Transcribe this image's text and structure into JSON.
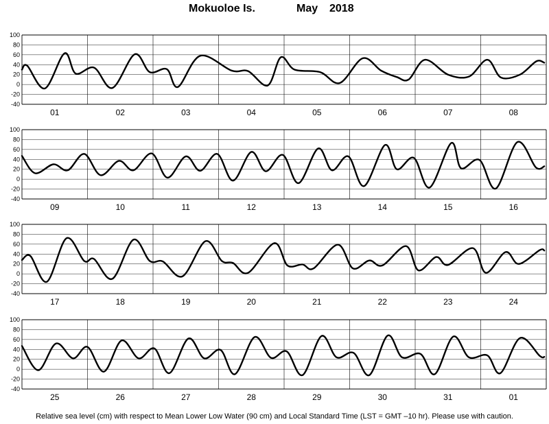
{
  "header": {
    "station": "Mokuoloe Is.",
    "month": "May",
    "year": "2018"
  },
  "footnote": "Relative sea level (cm) with respect to Mean Lower Low Water (90 cm) and Local Standard Time (LST = GMT –10 hr). Please use with caution.",
  "chart_data": {
    "type": "line",
    "title": "Mokuoloe Is.   May 2018",
    "ylabel": "",
    "xlabel": "",
    "units": "cm",
    "ylim": [
      -40,
      100
    ],
    "yticks": [
      -40,
      -20,
      0,
      20,
      40,
      60,
      80,
      100
    ],
    "grid": true,
    "line_color": "#000000",
    "panels": [
      {
        "days": [
          "01",
          "02",
          "03",
          "04",
          "05",
          "06",
          "07",
          "08"
        ],
        "series": [
          {
            "x_days": [
              0,
              0.08,
              0.35,
              0.65,
              0.82,
              1.1,
              1.38,
              1.72,
              1.95,
              2.21,
              2.38,
              2.72,
              3.2,
              3.45,
              3.75,
              3.95,
              4.16,
              4.55,
              4.85,
              5.2,
              5.48,
              5.72,
              5.9,
              6.15,
              6.5,
              6.82,
              7.1,
              7.31,
              7.6,
              7.85,
              7.97
            ],
            "y": [
              30,
              38,
              -8,
              63,
              22,
              34,
              -7,
              61,
              25,
              31,
              -5,
              58,
              28,
              27,
              -2,
              55,
              30,
              25,
              3,
              53,
              28,
              15,
              10,
              50,
              20,
              16,
              50,
              14,
              20,
              47,
              44
            ]
          }
        ]
      },
      {
        "days": [
          "09",
          "10",
          "11",
          "12",
          "13",
          "14",
          "15",
          "16"
        ],
        "series": [
          {
            "x_days": [
              0,
              0.2,
              0.48,
              0.7,
              0.95,
              1.2,
              1.48,
              1.7,
              1.98,
              2.22,
              2.5,
              2.72,
              2.98,
              3.22,
              3.5,
              3.72,
              3.98,
              4.22,
              4.52,
              4.73,
              4.98,
              5.22,
              5.54,
              5.72,
              5.98,
              6.22,
              6.55,
              6.7,
              6.98,
              7.23,
              7.56,
              7.84,
              7.97
            ],
            "y": [
              47,
              12,
              30,
              18,
              51,
              8,
              37,
              18,
              52,
              3,
              46,
              17,
              51,
              -3,
              55,
              16,
              49,
              -8,
              62,
              18,
              46,
              -14,
              69,
              20,
              43,
              -17,
              73,
              22,
              39,
              -19,
              75,
              24,
              26
            ]
          }
        ]
      },
      {
        "days": [
          "17",
          "18",
          "19",
          "20",
          "21",
          "22",
          "23",
          "24"
        ],
        "series": [
          {
            "x_days": [
              0,
              0.13,
              0.38,
              0.68,
              0.95,
              1.1,
              1.38,
              1.7,
              1.95,
              2.15,
              2.45,
              2.8,
              3.05,
              3.22,
              3.45,
              3.85,
              4.05,
              4.28,
              4.45,
              4.82,
              5.05,
              5.3,
              5.5,
              5.86,
              6.05,
              6.32,
              6.5,
              6.88,
              7.08,
              7.38,
              7.58,
              7.9,
              7.97
            ],
            "y": [
              28,
              36,
              -16,
              72,
              26,
              30,
              -10,
              69,
              26,
              25,
              -5,
              66,
              26,
              22,
              2,
              62,
              17,
              19,
              11,
              59,
              11,
              27,
              17,
              56,
              7,
              34,
              18,
              52,
              2,
              44,
              20,
              48,
              47
            ]
          }
        ]
      },
      {
        "days": [
          "25",
          "26",
          "27",
          "28",
          "29",
          "30",
          "31",
          "01"
        ],
        "series": [
          {
            "x_days": [
              0,
              0.25,
              0.52,
              0.78,
              1.0,
              1.25,
              1.52,
              1.78,
              2.02,
              2.25,
              2.54,
              2.78,
              3.03,
              3.25,
              3.55,
              3.8,
              4.04,
              4.28,
              4.57,
              4.8,
              5.06,
              5.3,
              5.58,
              5.8,
              6.08,
              6.3,
              6.58,
              6.82,
              7.1,
              7.3,
              7.6,
              7.9,
              7.97
            ],
            "y": [
              47,
              -2,
              52,
              22,
              45,
              -5,
              58,
              22,
              42,
              -8,
              62,
              22,
              39,
              -10,
              65,
              23,
              36,
              -12,
              67,
              24,
              33,
              -12,
              68,
              24,
              31,
              -10,
              66,
              24,
              28,
              -8,
              63,
              27,
              25
            ]
          }
        ]
      }
    ]
  }
}
